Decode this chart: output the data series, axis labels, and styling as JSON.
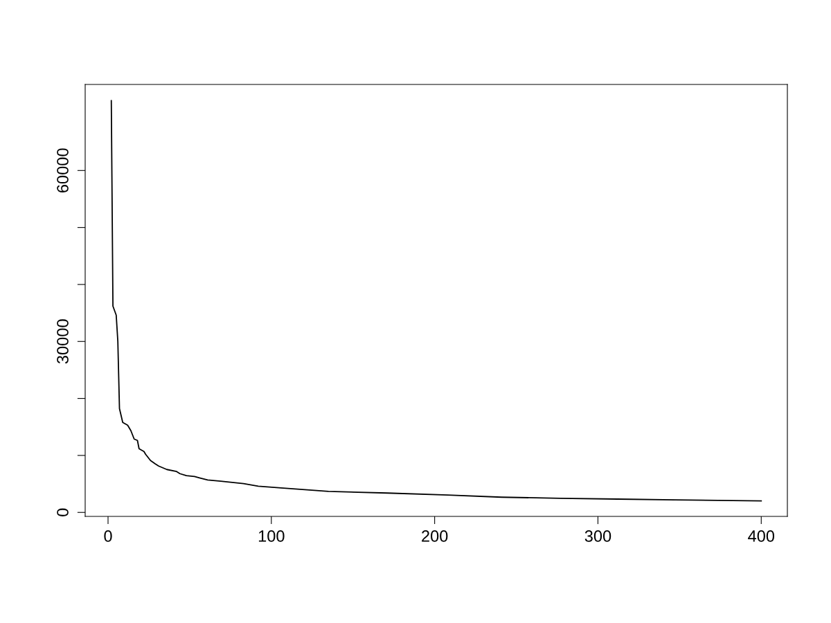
{
  "chart_data": {
    "type": "line",
    "marker": "none",
    "line_style": "solid",
    "grid": false,
    "legend": false,
    "x": [
      2,
      3,
      5,
      6,
      7,
      9,
      12,
      14,
      16,
      18,
      19,
      22,
      23,
      26,
      29,
      31,
      36,
      42,
      44,
      48,
      53,
      56,
      61,
      69,
      83,
      92,
      106,
      135,
      171,
      208,
      241,
      277,
      312,
      347,
      400
    ],
    "series": [
      {
        "color": "#000000",
        "values": [
          72270,
          36200,
          34620,
          30000,
          18220,
          15790,
          15300,
          14330,
          12880,
          12630,
          11170,
          10690,
          10200,
          9110,
          8500,
          8140,
          7530,
          7170,
          6800,
          6440,
          6300,
          6070,
          5700,
          5470,
          5050,
          4610,
          4300,
          3690,
          3400,
          3040,
          2670,
          2480,
          2340,
          2210,
          2030
        ]
      }
    ],
    "xlim": [
      -14,
      416
    ],
    "xticks": [
      0,
      100,
      200,
      300,
      400
    ],
    "ylim": [
      -700,
      75100
    ],
    "yticks": [
      0,
      {
        "value": 10000,
        "label": null
      },
      {
        "value": 20000,
        "label": null
      },
      30000,
      {
        "value": 40000,
        "label": null
      },
      {
        "value": 50000,
        "label": null
      },
      60000
    ]
  }
}
